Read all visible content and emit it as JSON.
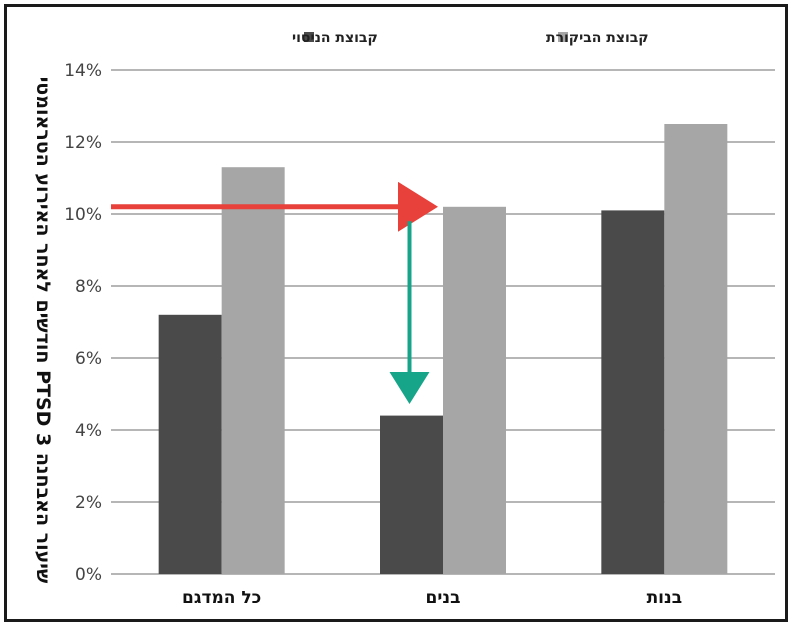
{
  "chart_data": {
    "type": "bar",
    "title": "",
    "xlabel": "",
    "ylabel": "שיעור האבחנה PTSD 3 חודשים לאחר האירוע הטראומטי",
    "categories": [
      "כל המדגם",
      "בנים",
      "בנות"
    ],
    "series": [
      {
        "name": "קבוצת הניסוי",
        "color": "#4a4a4a",
        "values": [
          7.2,
          4.4,
          10.1
        ]
      },
      {
        "name": "קבוצת הביקורת",
        "color": "#a6a6a6",
        "values": [
          11.3,
          10.2,
          12.5
        ]
      }
    ],
    "ylim": [
      0,
      14
    ],
    "yticks": [
      0,
      2,
      4,
      6,
      8,
      10,
      12,
      14
    ],
    "ytick_labels": [
      "0%",
      "2%",
      "4%",
      "6%",
      "8%",
      "10%",
      "12%",
      "14%"
    ],
    "grid": true,
    "legend_position": "top",
    "annotations": [
      {
        "type": "arrow",
        "color": "#e8403a",
        "direction": "horizontal",
        "at_y": 10.2,
        "from": "left-edge",
        "to": "בנים"
      },
      {
        "type": "arrow",
        "color": "#17a589",
        "direction": "vertical",
        "category": "בנים",
        "from_y": 9.8,
        "to_y": 4.5
      }
    ]
  }
}
